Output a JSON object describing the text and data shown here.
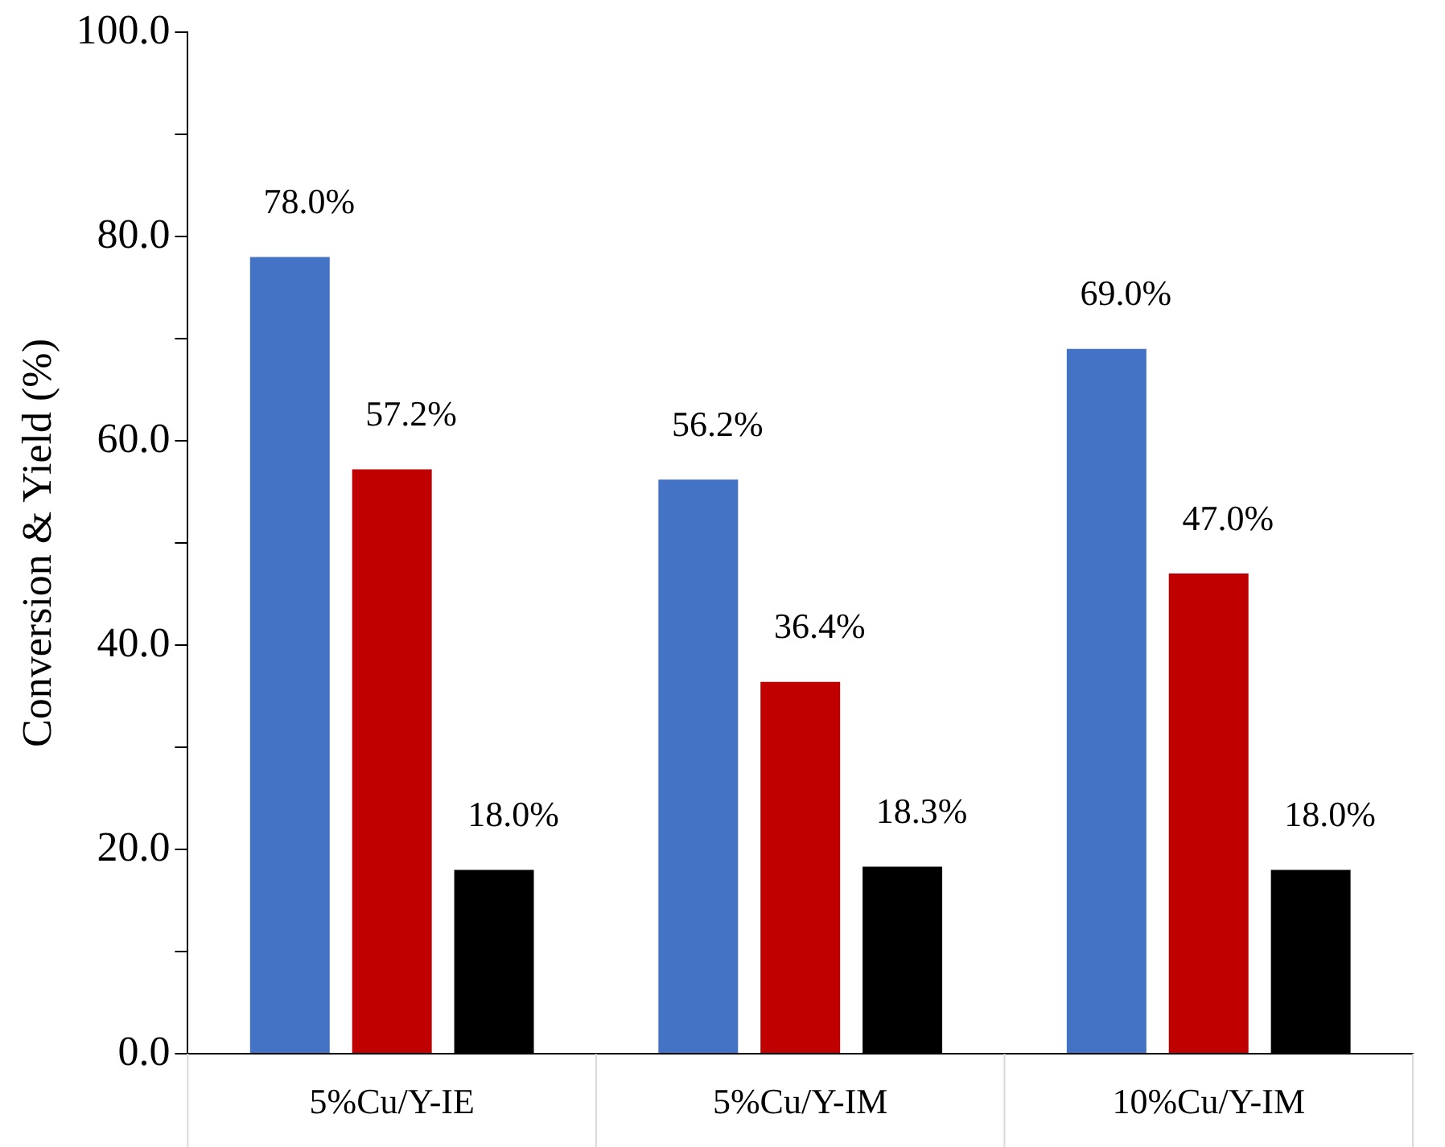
{
  "chart_data": {
    "type": "bar",
    "ylabel": "Conversion & Yield (%)",
    "categories": [
      "5%Cu/Y-IE",
      "5%Cu/Y-IM",
      "10%Cu/Y-IM"
    ],
    "series": [
      {
        "color": "#4472c4",
        "values": [
          78.0,
          56.2,
          69.0
        ],
        "value_labels": [
          "78.0%",
          "56.2%",
          "69.0%"
        ]
      },
      {
        "color": "#c00000",
        "values": [
          57.2,
          36.4,
          47.0
        ],
        "value_labels": [
          "57.2%",
          "36.4%",
          "47.0%"
        ]
      },
      {
        "color": "#000000",
        "values": [
          18.0,
          18.3,
          18.0
        ],
        "value_labels": [
          "18.0%",
          "18.3%",
          "18.0%"
        ]
      }
    ],
    "ylim": [
      0,
      100
    ],
    "yticks": [
      {
        "value": 0,
        "label": "0.0"
      },
      {
        "value": 10,
        "label": null
      },
      {
        "value": 20,
        "label": "20.0"
      },
      {
        "value": 30,
        "label": null
      },
      {
        "value": 40,
        "label": "40.0"
      },
      {
        "value": 50,
        "label": null
      },
      {
        "value": 60,
        "label": "60.0"
      },
      {
        "value": 70,
        "label": null
      },
      {
        "value": 80,
        "label": "80.0"
      },
      {
        "value": 90,
        "label": null
      },
      {
        "value": 100,
        "label": "100.0"
      }
    ],
    "grid": false,
    "legend": false
  }
}
